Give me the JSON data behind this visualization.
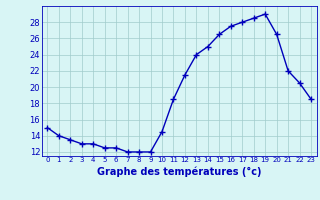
{
  "x": [
    0,
    1,
    2,
    3,
    4,
    5,
    6,
    7,
    8,
    9,
    10,
    11,
    12,
    13,
    14,
    15,
    16,
    17,
    18,
    19,
    20,
    21,
    22,
    23
  ],
  "y": [
    15,
    14,
    13.5,
    13,
    13,
    12.5,
    12.5,
    12,
    12,
    12,
    14.5,
    18.5,
    21.5,
    24,
    25,
    26.5,
    27.5,
    28,
    28.5,
    29,
    26.5,
    22,
    20.5,
    18.5
  ],
  "line_color": "#0000bb",
  "marker": "+",
  "marker_size": 4,
  "marker_linewidth": 1.0,
  "line_width": 1.0,
  "bg_color": "#d8f5f5",
  "grid_color": "#a0cccc",
  "xlabel": "Graphe des températures (°c)",
  "xlim": [
    -0.5,
    23.5
  ],
  "ylim": [
    11.5,
    30
  ],
  "yticks": [
    12,
    14,
    16,
    18,
    20,
    22,
    24,
    26,
    28
  ],
  "xticks": [
    0,
    1,
    2,
    3,
    4,
    5,
    6,
    7,
    8,
    9,
    10,
    11,
    12,
    13,
    14,
    15,
    16,
    17,
    18,
    19,
    20,
    21,
    22,
    23
  ],
  "xlabel_color": "#0000bb",
  "tick_color": "#0000bb",
  "spine_color": "#0000bb",
  "xlabel_fontsize": 7,
  "xtick_fontsize": 5,
  "ytick_fontsize": 6
}
